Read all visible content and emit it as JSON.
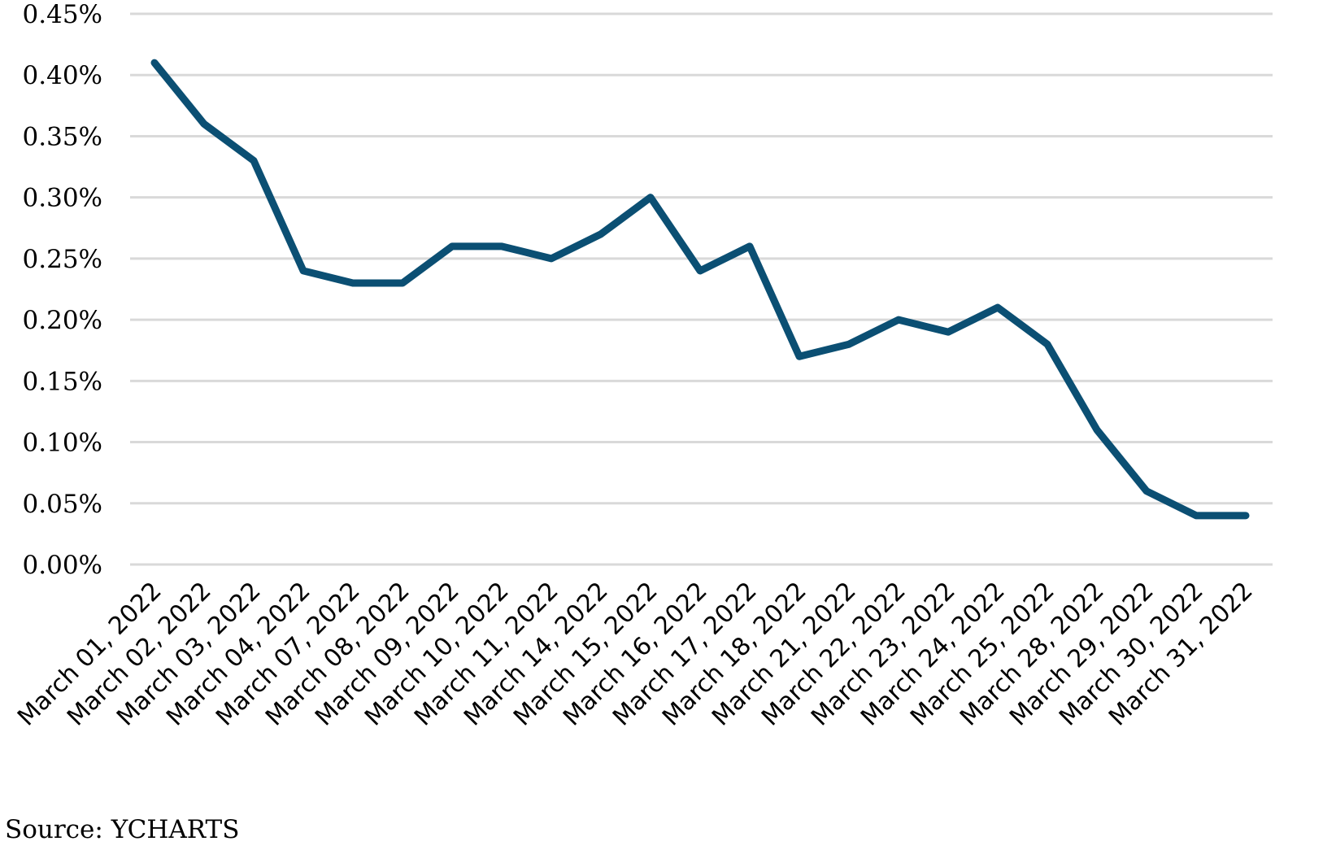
{
  "chart_data": {
    "type": "line",
    "title": "",
    "xlabel": "",
    "ylabel": "",
    "ylim": [
      0,
      0.45
    ],
    "grid": true,
    "y_ticks": [
      "0.00%",
      "0.05%",
      "0.10%",
      "0.15%",
      "0.20%",
      "0.25%",
      "0.30%",
      "0.35%",
      "0.40%",
      "0.45%"
    ],
    "y_tick_values": [
      0.0,
      0.05,
      0.1,
      0.15,
      0.2,
      0.25,
      0.3,
      0.35,
      0.4,
      0.45
    ],
    "categories": [
      "March 01, 2022",
      "March 02, 2022",
      "March 03, 2022",
      "March 04, 2022",
      "March 07, 2022",
      "March 08, 2022",
      "March 09, 2022",
      "March 10, 2022",
      "March 11, 2022",
      "March 14, 2022",
      "March 15, 2022",
      "March 16, 2022",
      "March 17, 2022",
      "March 18, 2022",
      "March 21, 2022",
      "March 22, 2022",
      "March 23, 2022",
      "March 24, 2022",
      "March 25, 2022",
      "March 28, 2022",
      "March 29, 2022",
      "March 30, 2022",
      "March 31, 2022"
    ],
    "series": [
      {
        "color": "#0b4f73",
        "values": [
          0.41,
          0.36,
          0.33,
          0.24,
          0.23,
          0.23,
          0.26,
          0.26,
          0.25,
          0.27,
          0.3,
          0.24,
          0.26,
          0.17,
          0.18,
          0.2,
          0.19,
          0.21,
          0.18,
          0.11,
          0.06,
          0.04,
          0.04
        ]
      }
    ]
  },
  "source_note": "Source: YCHARTS"
}
